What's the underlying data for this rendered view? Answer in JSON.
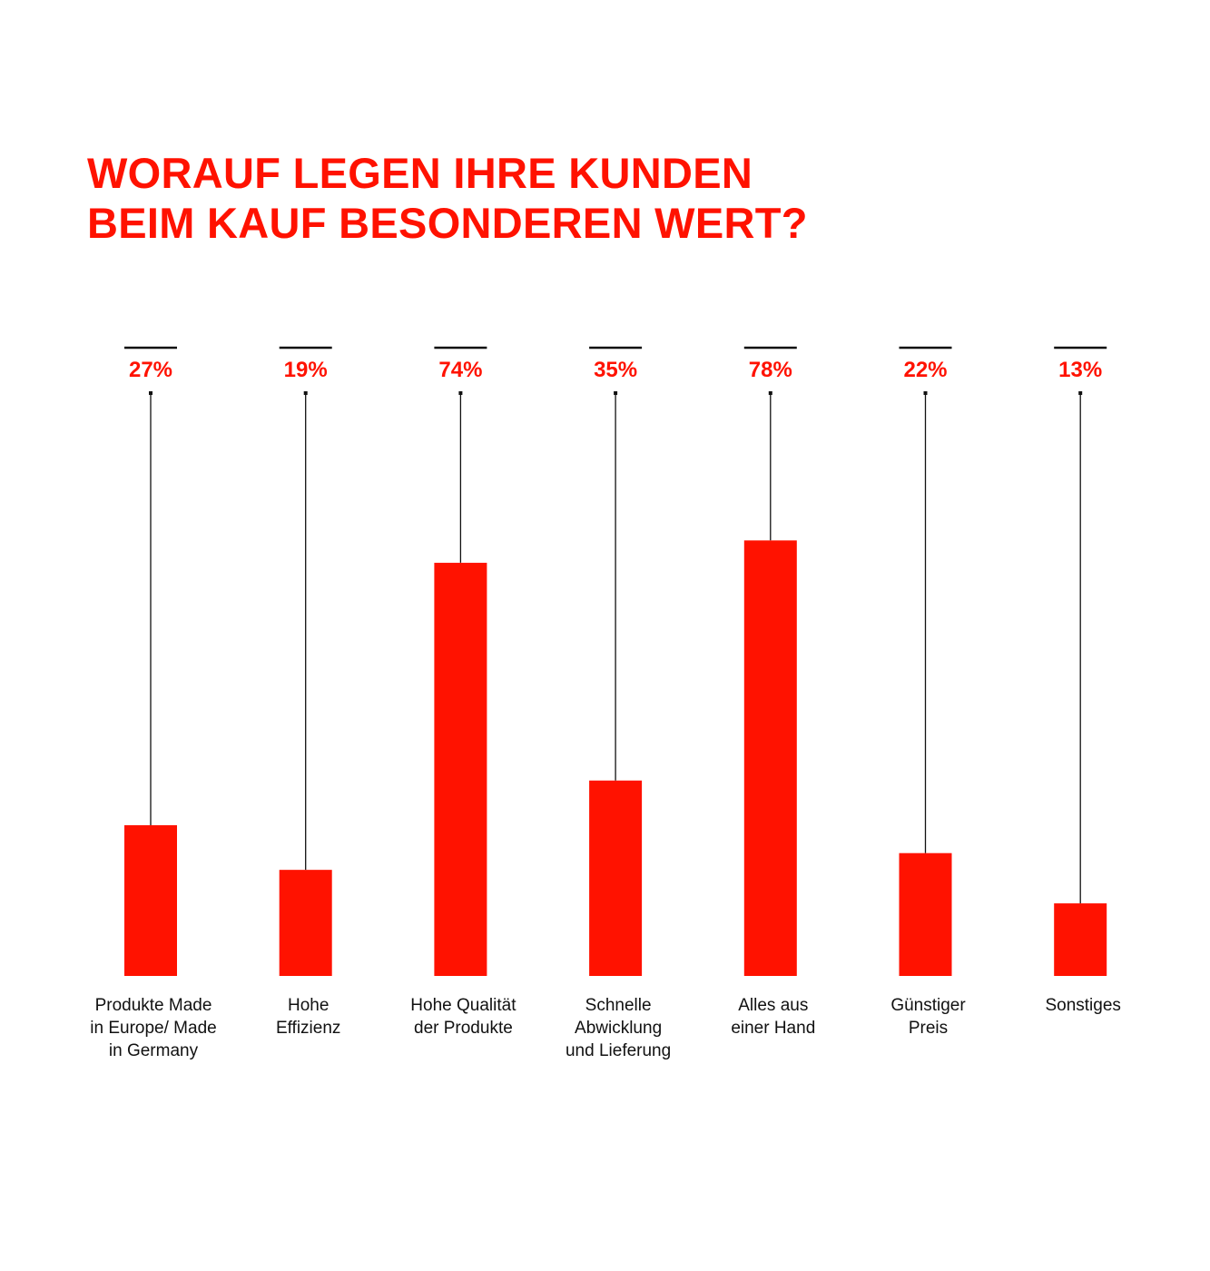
{
  "chart_data": {
    "type": "bar",
    "title_lines": [
      "WORAUF LEGEN IHRE KUNDEN",
      "BEIM KAUF BESONDEREN WERT?"
    ],
    "categories": [
      [
        "Produkte Made",
        "in Europe/ Made",
        "in Germany"
      ],
      [
        "Hohe",
        "Effizienz"
      ],
      [
        "Hohe Qualität",
        "der Produkte"
      ],
      [
        "Schnelle",
        "Abwicklung",
        "und Lieferung"
      ],
      [
        "Alles aus",
        "einer Hand"
      ],
      [
        "Günstiger",
        "Preis"
      ],
      [
        "Sonstiges"
      ]
    ],
    "values": [
      27,
      19,
      74,
      35,
      78,
      22,
      13
    ],
    "value_labels": [
      "27%",
      "19%",
      "74%",
      "35%",
      "78%",
      "22%",
      "13%"
    ],
    "unit": "%",
    "ylim": [
      0,
      100
    ],
    "grid": false,
    "legend": "none"
  },
  "colors": {
    "accent": "#ff1200",
    "line": "#111111",
    "text": "#111111",
    "background": "#ffffff"
  }
}
